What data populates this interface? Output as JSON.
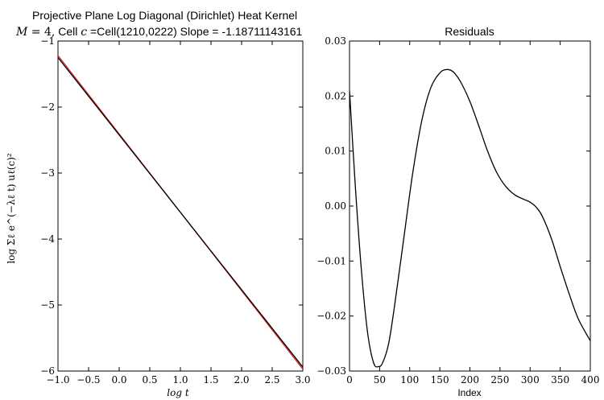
{
  "figure": {
    "suptitle": "Projective Plane Log Diagonal (Dirichlet) Heat Kernel",
    "subtitle": "M = 4, Cell c =Cell(1210,0222) Slope = -1.18711143161"
  },
  "chart_data": [
    {
      "type": "line",
      "title": "M = 4, Cell c =Cell(1210,0222) Slope = -1.18711143161",
      "xlabel": "log t",
      "ylabel": "log Σℓ e^(−λℓ t) uℓ(c)²",
      "xlim": [
        -1.0,
        3.0
      ],
      "ylim": [
        -6,
        -1
      ],
      "x_ticks": [
        "−1.0",
        "−0.5",
        "0.0",
        "0.5",
        "1.0",
        "1.5",
        "2.0",
        "2.5",
        "3.0"
      ],
      "y_ticks": [
        "−6",
        "−5",
        "−4",
        "−3",
        "−2",
        "−1"
      ],
      "grid": false,
      "series": [
        {
          "color": "#d62728",
          "x": [
            -1.0,
            3.0
          ],
          "y": [
            -1.22,
            -5.97
          ]
        },
        {
          "color": "#000000",
          "x": [
            -1.0,
            3.0
          ],
          "y": [
            -1.25,
            -5.94
          ]
        }
      ]
    },
    {
      "type": "line",
      "title": "Residuals",
      "xlabel": "Index",
      "ylabel": "",
      "xlim": [
        0,
        400
      ],
      "ylim": [
        -0.03,
        0.03
      ],
      "x_ticks": [
        "0",
        "50",
        "100",
        "150",
        "200",
        "250",
        "300",
        "350",
        "400"
      ],
      "y_ticks": [
        "−0.03",
        "−0.02",
        "−0.01",
        "0.00",
        "0.01",
        "0.02",
        "0.03"
      ],
      "grid": false,
      "series": [
        {
          "color": "#000000",
          "x": [
            0,
            10,
            20,
            30,
            40,
            48,
            55,
            65,
            75,
            90,
            105,
            120,
            135,
            150,
            160,
            168,
            175,
            185,
            200,
            215,
            230,
            245,
            260,
            275,
            290,
            300,
            310,
            320,
            335,
            350,
            365,
            380,
            400
          ],
          "y": [
            0.021,
            0.003,
            -0.012,
            -0.023,
            -0.0285,
            -0.0292,
            -0.0285,
            -0.025,
            -0.018,
            -0.006,
            0.006,
            0.0155,
            0.0215,
            0.0242,
            0.0248,
            0.0247,
            0.0241,
            0.0225,
            0.019,
            0.0145,
            0.0098,
            0.006,
            0.0035,
            0.002,
            0.0012,
            0.0007,
            -0.0002,
            -0.0018,
            -0.0058,
            -0.011,
            -0.016,
            -0.0205,
            -0.0245
          ]
        }
      ]
    }
  ]
}
